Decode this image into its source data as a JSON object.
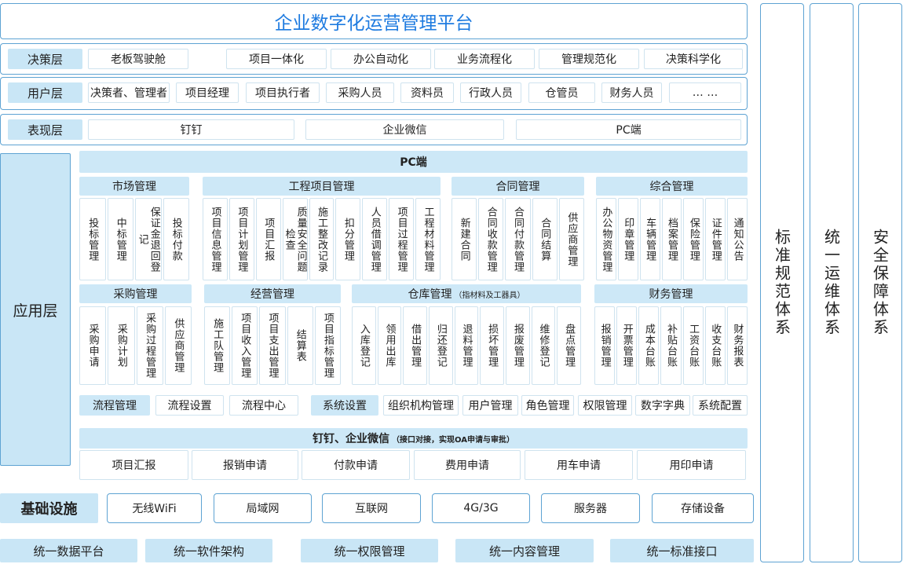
{
  "title": "企业数字化运营管理平台",
  "decision_layer": {
    "label": "决策层",
    "items": [
      "老板驾驶舱",
      "项目一体化",
      "办公自动化",
      "业务流程化",
      "管理规范化",
      "决策科学化"
    ]
  },
  "user_layer": {
    "label": "用户层",
    "items": [
      "决策者、管理者",
      "项目经理",
      "项目执行者",
      "采购人员",
      "资料员",
      "行政人员",
      "仓管员",
      "财务人员",
      "… …"
    ]
  },
  "presentation_layer": {
    "label": "表现层",
    "items": [
      "钉钉",
      "企业微信",
      "PC端"
    ]
  },
  "application_layer": {
    "label": "应用层",
    "pc_title": "PC端",
    "modules": [
      {
        "title": "市场管理",
        "items": [
          "投标管理",
          "中标管理",
          "保证金退回登记",
          "投标付款"
        ]
      },
      {
        "title": "工程项目管理",
        "items": [
          "项目信息管理",
          "项目计划管理",
          "项目汇报",
          "质量安全问题检查",
          "施工整改记录",
          "扣分管理",
          "人员借调管理",
          "项目过程管理",
          "工程材料管理"
        ]
      },
      {
        "title": "合同管理",
        "items": [
          "新建合同",
          "合同收款管理",
          "合同付款管理",
          "合同结算",
          "供应商管理"
        ]
      },
      {
        "title": "综合管理",
        "items": [
          "办公物资管理",
          "印章管理",
          "车辆管理",
          "档案管理",
          "保险管理",
          "证件管理",
          "通知公告"
        ]
      },
      {
        "title": "采购管理",
        "items": [
          "采购申请",
          "采购计划",
          "采购过程管理",
          "供应商管理"
        ]
      },
      {
        "title": "经营管理",
        "items": [
          "施工队管理",
          "项目收入管理",
          "项目支出管理",
          "结算表",
          "项目指标管理"
        ]
      },
      {
        "title": "仓库管理",
        "note": "（指材料及工器具）",
        "items": [
          "入库登记",
          "领用出库",
          "借出管理",
          "归还登记",
          "退料管理",
          "损坏管理",
          "报废管理",
          "维修登记",
          "盘点管理"
        ]
      },
      {
        "title": "财务管理",
        "items": [
          "报销管理",
          "开票管理",
          "成本台账",
          "补贴台账",
          "工资台账",
          "收支台账",
          "财务报表"
        ]
      }
    ],
    "process": {
      "title": "流程管理",
      "items": [
        "流程设置",
        "流程中心"
      ]
    },
    "system": {
      "title": "系统设置",
      "items": [
        "组织机构管理",
        "用户管理",
        "角色管理",
        "权限管理",
        "数字字典",
        "系统配置"
      ]
    },
    "dingtalk": {
      "title": "钉钉、企业微信",
      "note": "（接口对接，实现OA申请与审批）",
      "items": [
        "项目汇报",
        "报销申请",
        "付款申请",
        "费用申请",
        "用车申请",
        "用印申请"
      ]
    }
  },
  "infrastructure": {
    "label": "基础设施",
    "items": [
      "无线WiFi",
      "局域网",
      "互联网",
      "4G/3G",
      "服务器",
      "存储设备"
    ]
  },
  "platforms": [
    "统一数据平台",
    "统一软件架构",
    "统一权限管理",
    "统一内容管理",
    "统一标准接口"
  ],
  "side_systems": [
    "标准规范体系",
    "统一运维体系",
    "安全保障体系"
  ]
}
